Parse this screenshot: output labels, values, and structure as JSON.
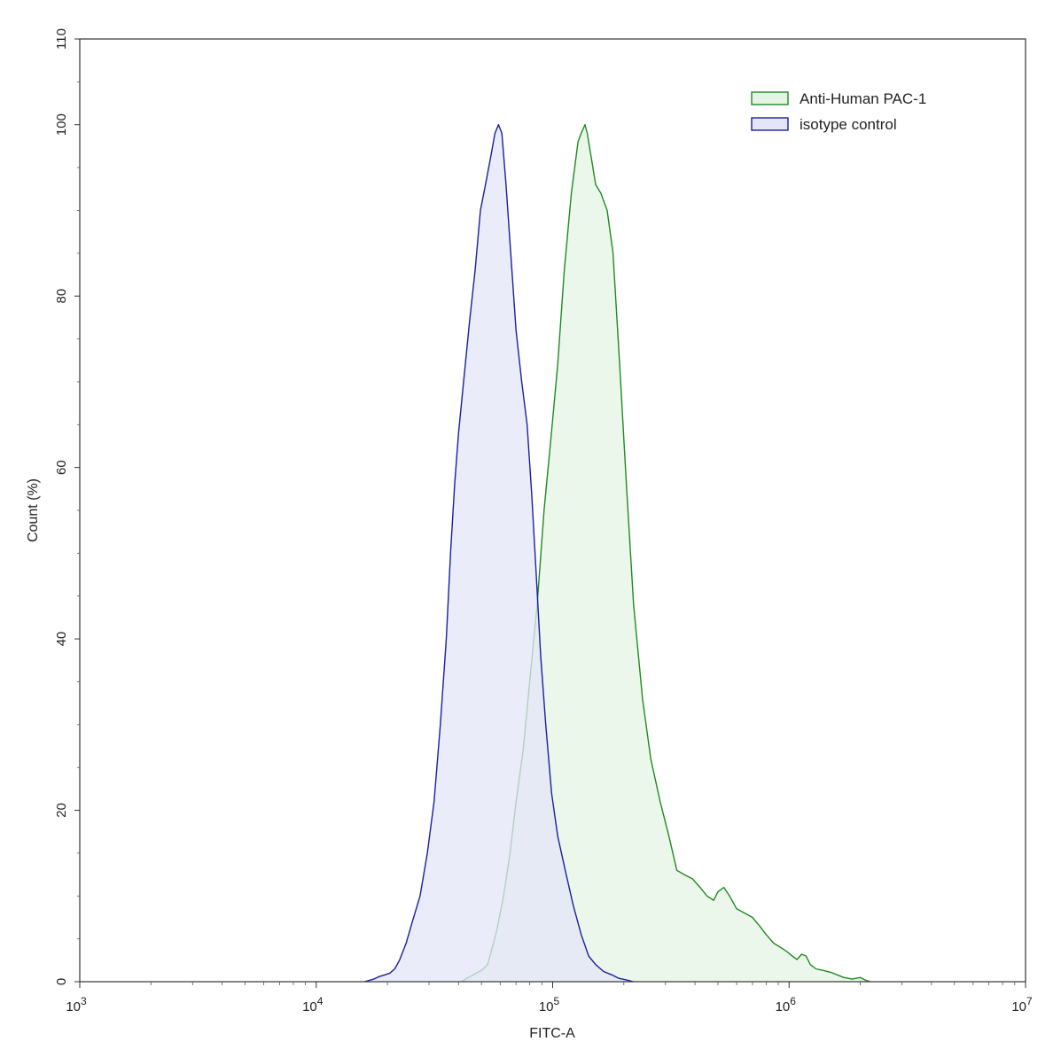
{
  "chart_data": {
    "type": "area",
    "xlabel": "FITC-A",
    "ylabel": "Count (%)",
    "x_scale": "log",
    "xlim": [
      1000,
      10000000
    ],
    "ylim": [
      0,
      110
    ],
    "x_ticks": [
      {
        "value": 1000,
        "base": "10",
        "exp": "3"
      },
      {
        "value": 10000,
        "base": "10",
        "exp": "4"
      },
      {
        "value": 100000,
        "base": "10",
        "exp": "5"
      },
      {
        "value": 1000000,
        "base": "10",
        "exp": "6"
      },
      {
        "value": 10000000,
        "base": "10",
        "exp": "7"
      }
    ],
    "y_ticks": [
      "0",
      "20",
      "40",
      "60",
      "80",
      "100",
      "110"
    ],
    "y_tick_values": [
      0,
      20,
      40,
      60,
      80,
      100,
      110
    ],
    "grid": false,
    "legend_position": "top-right",
    "series": [
      {
        "name": "Anti-Human PAC-1",
        "stroke": "#1f8a1f",
        "fill": "#e6f4e6",
        "points": [
          [
            41000,
            0
          ],
          [
            46000,
            0.8
          ],
          [
            50000,
            1.3
          ],
          [
            53000,
            2
          ],
          [
            55000,
            3.5
          ],
          [
            58000,
            6
          ],
          [
            62000,
            10
          ],
          [
            66000,
            15
          ],
          [
            70000,
            21
          ],
          [
            75000,
            27
          ],
          [
            80000,
            35
          ],
          [
            86000,
            44
          ],
          [
            92000,
            55
          ],
          [
            98000,
            63
          ],
          [
            105000,
            72
          ],
          [
            112000,
            83
          ],
          [
            120000,
            92
          ],
          [
            128000,
            98
          ],
          [
            132000,
            99
          ],
          [
            137000,
            100
          ],
          [
            140000,
            99
          ],
          [
            146000,
            96
          ],
          [
            152000,
            93
          ],
          [
            160000,
            92
          ],
          [
            170000,
            90
          ],
          [
            180000,
            85
          ],
          [
            192000,
            72
          ],
          [
            205000,
            58
          ],
          [
            220000,
            44
          ],
          [
            240000,
            33
          ],
          [
            260000,
            26
          ],
          [
            285000,
            21
          ],
          [
            310000,
            17
          ],
          [
            335000,
            13
          ],
          [
            360000,
            12.5
          ],
          [
            390000,
            12
          ],
          [
            420000,
            11
          ],
          [
            450000,
            10
          ],
          [
            480000,
            9.5
          ],
          [
            500000,
            10.5
          ],
          [
            530000,
            11
          ],
          [
            560000,
            10
          ],
          [
            600000,
            8.5
          ],
          [
            650000,
            8
          ],
          [
            700000,
            7.5
          ],
          [
            750000,
            6.5
          ],
          [
            800000,
            5.5
          ],
          [
            860000,
            4.5
          ],
          [
            920000,
            4
          ],
          [
            980000,
            3.5
          ],
          [
            1030000,
            3
          ],
          [
            1080000,
            2.6
          ],
          [
            1130000,
            3.2
          ],
          [
            1180000,
            3
          ],
          [
            1230000,
            2
          ],
          [
            1300000,
            1.5
          ],
          [
            1400000,
            1.3
          ],
          [
            1500000,
            1.1
          ],
          [
            1600000,
            0.8
          ],
          [
            1700000,
            0.5
          ],
          [
            1850000,
            0.3
          ],
          [
            2000000,
            0.5
          ],
          [
            2100000,
            0.2
          ],
          [
            2200000,
            0
          ]
        ]
      },
      {
        "name": "isotype control",
        "stroke": "#1a1fa0",
        "fill": "#e4e6f8",
        "points": [
          [
            16000,
            0
          ],
          [
            17500,
            0.3
          ],
          [
            18500,
            0.6
          ],
          [
            19500,
            0.8
          ],
          [
            20500,
            1
          ],
          [
            21500,
            1.5
          ],
          [
            22500,
            2.5
          ],
          [
            24000,
            4.5
          ],
          [
            25500,
            7
          ],
          [
            27500,
            10
          ],
          [
            29500,
            15
          ],
          [
            31500,
            21
          ],
          [
            33500,
            30
          ],
          [
            35500,
            40
          ],
          [
            37000,
            50
          ],
          [
            38500,
            58
          ],
          [
            40000,
            64
          ],
          [
            42000,
            70
          ],
          [
            44500,
            77
          ],
          [
            47000,
            83
          ],
          [
            49500,
            90
          ],
          [
            52000,
            93
          ],
          [
            54500,
            96
          ],
          [
            57000,
            99
          ],
          [
            59000,
            100
          ],
          [
            61000,
            99
          ],
          [
            63500,
            93
          ],
          [
            66500,
            85
          ],
          [
            70000,
            76
          ],
          [
            74000,
            70
          ],
          [
            78000,
            65
          ],
          [
            81500,
            57
          ],
          [
            85000,
            48
          ],
          [
            89000,
            38
          ],
          [
            93500,
            30
          ],
          [
            99000,
            22
          ],
          [
            105000,
            17
          ],
          [
            113000,
            13
          ],
          [
            122000,
            9
          ],
          [
            132000,
            5.5
          ],
          [
            142000,
            3
          ],
          [
            152000,
            2
          ],
          [
            164000,
            1.2
          ],
          [
            178000,
            0.8
          ],
          [
            190000,
            0.4
          ],
          [
            205000,
            0.2
          ],
          [
            220000,
            0
          ]
        ]
      }
    ]
  }
}
